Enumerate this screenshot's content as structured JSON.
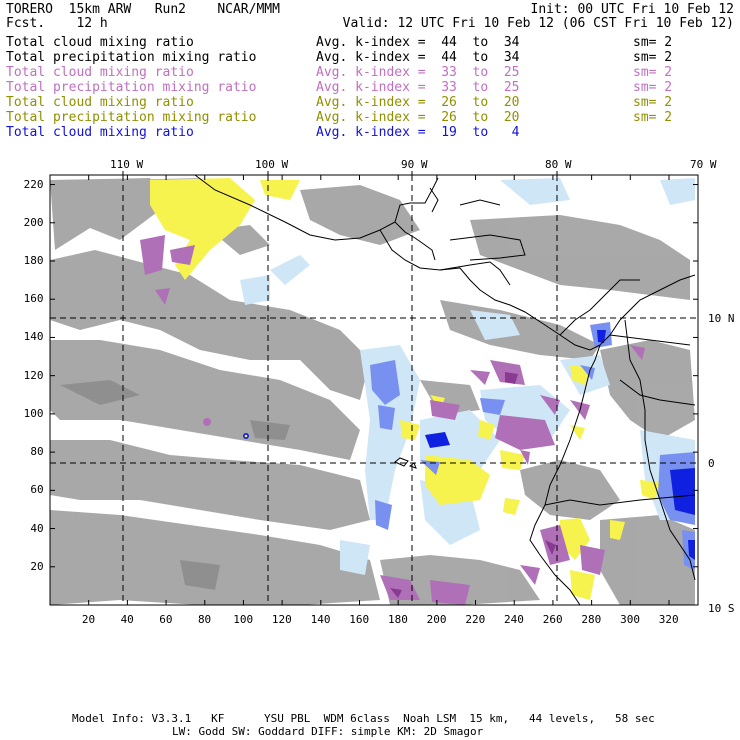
{
  "header": {
    "line1_left": "TORERO  15km ARW   Run2    NCAR/MMM",
    "line1_right": "Init: 00 UTC Fri 10 Feb 12",
    "line2_left": "Fcst.    12 h",
    "line2_right": "Valid: 12 UTC Fri 10 Feb 12 (06 CST Fri 10 Feb 12)"
  },
  "legend": [
    {
      "field": "Total cloud mixing ratio",
      "index": "Avg. k-index =  44  to  34",
      "sm": "sm= 2",
      "color": "#000000"
    },
    {
      "field": "Total precipitation mixing ratio",
      "index": "Avg. k-index =  44  to  34",
      "sm": "sm= 2",
      "color": "#000000"
    },
    {
      "field": "Total cloud mixing ratio",
      "index": "Avg. k-index =  33  to  25",
      "sm": "sm= 2",
      "color": "#c070c0"
    },
    {
      "field": "Total precipitation mixing ratio",
      "index": "Avg. k-index =  33  to  25",
      "sm": "sm= 2",
      "color": "#c070c0"
    },
    {
      "field": "Total cloud mixing ratio",
      "index": "Avg. k-index =  26  to  20",
      "sm": "sm= 2",
      "color": "#909000"
    },
    {
      "field": "Total precipitation mixing ratio",
      "index": "Avg. k-index =  26  to  20",
      "sm": "sm= 2",
      "color": "#909000"
    },
    {
      "field": "Total cloud mixing ratio",
      "index": "Avg. k-index =  19  to   4",
      "sm": "",
      "color": "#1010e0"
    }
  ],
  "axes": {
    "lon_labels": [
      "110 W",
      "100 W",
      "90 W",
      "80 W",
      "70 W"
    ],
    "lat_labels": [
      "10 N",
      "0",
      "10 S"
    ],
    "x_ticks": [
      "20",
      "40",
      "60",
      "80",
      "100",
      "120",
      "140",
      "160",
      "180",
      "200",
      "220",
      "240",
      "260",
      "280",
      "300",
      "320"
    ],
    "y_ticks": [
      "220",
      "200",
      "180",
      "160",
      "140",
      "120",
      "100",
      "80",
      "60",
      "40",
      "20"
    ],
    "grid_lon_at_x": [
      40.3,
      112,
      183.5,
      255.5
    ],
    "grid_lat_at_y": [
      150,
      76
    ]
  },
  "footer": {
    "line1": "Model Info: V3.3.1   KF      YSU PBL  WDM 6class  Noah LSM  15 km,   44 levels,   58 sec",
    "line2": "LW: Godd SW: Goddard DIFF: simple KM: 2D Smagor"
  },
  "colors": {
    "gray": "#a4a4a4",
    "gray_dark": "#8c8c8c",
    "yellow": "#f6f24e",
    "purple": "#b070b8",
    "purple_dark": "#8a3a90",
    "lightblue": "#cfe6f7",
    "blue": "#7890f0",
    "blue_dark": "#1020e0",
    "coast": "#000000"
  }
}
